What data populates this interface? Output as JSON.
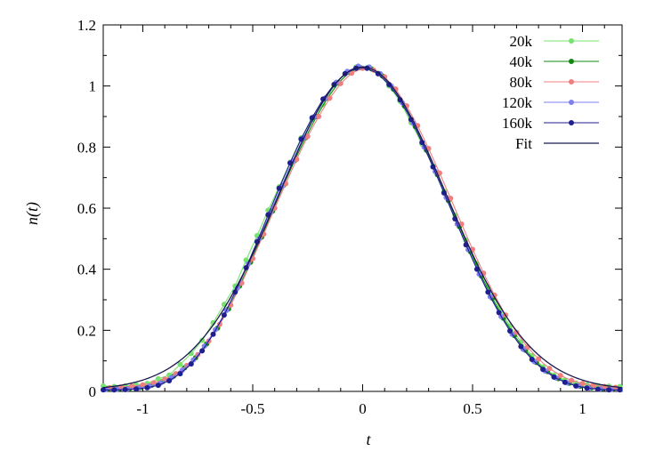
{
  "chart_data": {
    "type": "line",
    "xlabel": "t",
    "ylabel_parts": [
      "n(",
      "t",
      ")"
    ],
    "xlim": [
      -1.18,
      1.18
    ],
    "ylim": [
      0,
      1.2
    ],
    "xticks": [
      -1,
      -0.5,
      0,
      0.5,
      1
    ],
    "xtick_labels": [
      "-1",
      "-0.5",
      "0",
      "0.5",
      "1"
    ],
    "yticks": [
      0,
      0.2,
      0.4,
      0.6,
      0.8,
      1,
      1.2
    ],
    "ytick_labels": [
      "0",
      "0.2",
      "0.4",
      "0.6",
      "0.8",
      "1",
      "1.2"
    ],
    "grid": false,
    "legend_position": "top-right",
    "series": [
      {
        "name": "20k",
        "color": "#77e36f",
        "marker": "circle",
        "x": [
          -1.18,
          -1.13,
          -1.08,
          -1.03,
          -0.98,
          -0.93,
          -0.88,
          -0.83,
          -0.78,
          -0.73,
          -0.68,
          -0.63,
          -0.58,
          -0.53,
          -0.48,
          -0.43,
          -0.38,
          -0.33,
          -0.28,
          -0.23,
          -0.18,
          -0.13,
          -0.08,
          -0.03,
          0.02,
          0.07,
          0.12,
          0.17,
          0.22,
          0.27,
          0.32,
          0.37,
          0.42,
          0.47,
          0.52,
          0.57,
          0.62,
          0.67,
          0.72,
          0.77,
          0.82,
          0.87,
          0.92,
          0.97,
          1.02,
          1.07,
          1.12,
          1.17
        ],
        "y": [
          0.018,
          0.016,
          0.018,
          0.021,
          0.026,
          0.041,
          0.053,
          0.088,
          0.124,
          0.167,
          0.225,
          0.285,
          0.345,
          0.43,
          0.51,
          0.593,
          0.67,
          0.75,
          0.83,
          0.89,
          0.94,
          1.0,
          1.04,
          1.062,
          1.06,
          1.042,
          1.0,
          0.95,
          0.88,
          0.81,
          0.738,
          0.655,
          0.577,
          0.495,
          0.418,
          0.343,
          0.275,
          0.214,
          0.162,
          0.117,
          0.08,
          0.053,
          0.037,
          0.027,
          0.022,
          0.019,
          0.017,
          0.016
        ]
      },
      {
        "name": "40k",
        "color": "#0f8a0f",
        "marker": "circle",
        "x": [
          -1.16,
          -1.11,
          -1.06,
          -1.01,
          -0.96,
          -0.91,
          -0.86,
          -0.81,
          -0.76,
          -0.71,
          -0.66,
          -0.61,
          -0.56,
          -0.51,
          -0.46,
          -0.41,
          -0.36,
          -0.31,
          -0.26,
          -0.21,
          -0.16,
          -0.11,
          -0.06,
          -0.01,
          0.04,
          0.09,
          0.14,
          0.19,
          0.24,
          0.29,
          0.34,
          0.39,
          0.44,
          0.49,
          0.54,
          0.59,
          0.64,
          0.69,
          0.74,
          0.79,
          0.84,
          0.89,
          0.94,
          0.99,
          1.04,
          1.09,
          1.14
        ],
        "y": [
          0.008,
          0.008,
          0.009,
          0.013,
          0.02,
          0.032,
          0.05,
          0.077,
          0.11,
          0.155,
          0.207,
          0.27,
          0.345,
          0.423,
          0.505,
          0.59,
          0.675,
          0.755,
          0.83,
          0.9,
          0.96,
          1.01,
          1.045,
          1.06,
          1.056,
          1.033,
          0.99,
          0.935,
          0.867,
          0.79,
          0.71,
          0.625,
          0.54,
          0.458,
          0.378,
          0.305,
          0.24,
          0.183,
          0.135,
          0.095,
          0.065,
          0.042,
          0.027,
          0.017,
          0.012,
          0.01,
          0.009
        ]
      },
      {
        "name": "80k",
        "color": "#ef7f7f",
        "marker": "circle",
        "x": [
          -1.15,
          -1.1,
          -1.05,
          -1.0,
          -0.95,
          -0.9,
          -0.85,
          -0.8,
          -0.75,
          -0.7,
          -0.65,
          -0.6,
          -0.55,
          -0.5,
          -0.45,
          -0.4,
          -0.35,
          -0.3,
          -0.25,
          -0.2,
          -0.15,
          -0.1,
          -0.05,
          0.0,
          0.05,
          0.1,
          0.15,
          0.2,
          0.25,
          0.3,
          0.35,
          0.4,
          0.45,
          0.5,
          0.55,
          0.6,
          0.65,
          0.7,
          0.75,
          0.8,
          0.85,
          0.9,
          0.95,
          1.0,
          1.05,
          1.1,
          1.15
        ],
        "y": [
          0.012,
          0.014,
          0.017,
          0.021,
          0.028,
          0.04,
          0.058,
          0.085,
          0.12,
          0.165,
          0.22,
          0.283,
          0.355,
          0.435,
          0.515,
          0.6,
          0.68,
          0.76,
          0.835,
          0.9,
          0.96,
          1.008,
          1.042,
          1.058,
          1.052,
          1.03,
          0.99,
          0.935,
          0.87,
          0.795,
          0.715,
          0.632,
          0.548,
          0.465,
          0.387,
          0.315,
          0.25,
          0.193,
          0.145,
          0.106,
          0.075,
          0.052,
          0.036,
          0.026,
          0.02,
          0.016,
          0.013
        ]
      },
      {
        "name": "120k",
        "color": "#7f7ff0",
        "marker": "circle",
        "x": [
          -1.17,
          -1.12,
          -1.07,
          -1.02,
          -0.97,
          -0.92,
          -0.87,
          -0.82,
          -0.77,
          -0.72,
          -0.67,
          -0.62,
          -0.57,
          -0.52,
          -0.47,
          -0.42,
          -0.37,
          -0.32,
          -0.27,
          -0.22,
          -0.17,
          -0.12,
          -0.07,
          -0.02,
          0.03,
          0.08,
          0.13,
          0.18,
          0.23,
          0.28,
          0.33,
          0.38,
          0.43,
          0.48,
          0.53,
          0.58,
          0.63,
          0.68,
          0.73,
          0.78,
          0.83,
          0.88,
          0.93,
          0.98,
          1.03,
          1.08,
          1.13
        ],
        "y": [
          0.006,
          0.007,
          0.008,
          0.011,
          0.017,
          0.027,
          0.045,
          0.07,
          0.103,
          0.148,
          0.202,
          0.265,
          0.338,
          0.418,
          0.5,
          0.585,
          0.67,
          0.752,
          0.83,
          0.9,
          0.96,
          1.012,
          1.048,
          1.065,
          1.062,
          1.04,
          1.0,
          0.945,
          0.878,
          0.8,
          0.72,
          0.635,
          0.548,
          0.464,
          0.384,
          0.31,
          0.245,
          0.187,
          0.138,
          0.098,
          0.067,
          0.044,
          0.028,
          0.018,
          0.011,
          0.008,
          0.006
        ]
      },
      {
        "name": "160k",
        "color": "#1f1f8f",
        "marker": "circle",
        "x": [
          -1.18,
          -1.13,
          -1.08,
          -1.03,
          -0.98,
          -0.93,
          -0.88,
          -0.83,
          -0.78,
          -0.73,
          -0.68,
          -0.63,
          -0.58,
          -0.53,
          -0.48,
          -0.43,
          -0.38,
          -0.33,
          -0.28,
          -0.23,
          -0.18,
          -0.13,
          -0.08,
          -0.03,
          0.02,
          0.07,
          0.12,
          0.17,
          0.22,
          0.27,
          0.32,
          0.37,
          0.42,
          0.47,
          0.52,
          0.57,
          0.62,
          0.67,
          0.72,
          0.77,
          0.82,
          0.87,
          0.92,
          0.97,
          1.02,
          1.07,
          1.12,
          1.17
        ],
        "y": [
          0.005,
          0.005,
          0.006,
          0.008,
          0.012,
          0.02,
          0.035,
          0.058,
          0.09,
          0.133,
          0.187,
          0.25,
          0.325,
          0.405,
          0.49,
          0.578,
          0.665,
          0.748,
          0.826,
          0.896,
          0.957,
          1.005,
          1.04,
          1.058,
          1.058,
          1.04,
          1.005,
          0.955,
          0.89,
          0.815,
          0.735,
          0.65,
          0.565,
          0.48,
          0.4,
          0.325,
          0.258,
          0.198,
          0.147,
          0.105,
          0.072,
          0.047,
          0.03,
          0.018,
          0.011,
          0.007,
          0.005,
          0.005
        ]
      },
      {
        "name": "Fit",
        "color": "#1a1a50",
        "marker": "none",
        "function": "gaussian",
        "amplitude": 1.058,
        "sigma": 0.38,
        "baseline": 0.004
      }
    ]
  }
}
